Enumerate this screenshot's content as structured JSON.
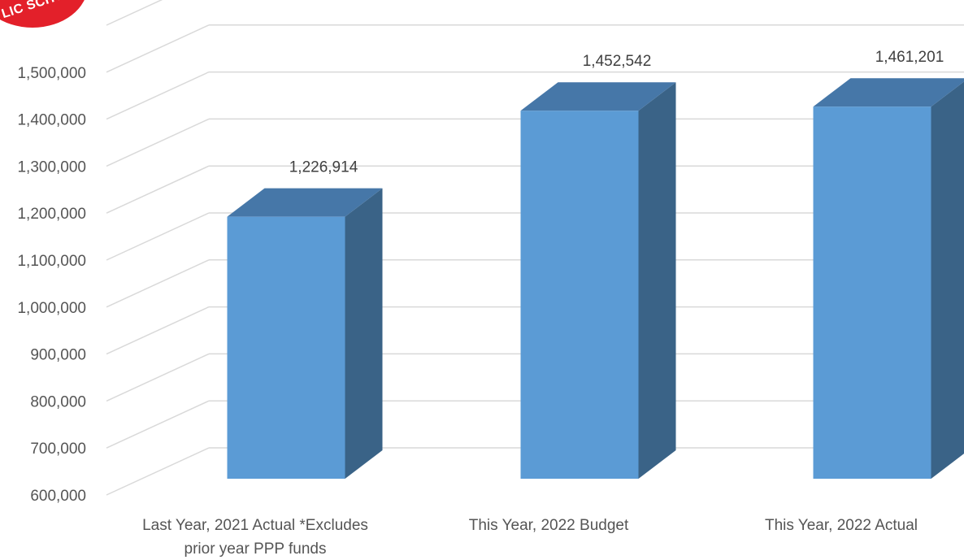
{
  "logo": {
    "text": "LIC SCHO",
    "color": "#e3202a"
  },
  "chart_data": {
    "type": "bar",
    "style": "3d-column",
    "categories": [
      [
        "Last Year, 2021 Actual  *Excludes",
        "prior year PPP funds"
      ],
      [
        "This Year, 2022 Budget"
      ],
      [
        "This Year, 2022 Actual"
      ]
    ],
    "values": [
      1226914,
      1452542,
      1461201
    ],
    "value_labels": [
      "1,226,914",
      "1,452,542",
      "1,461,201"
    ],
    "y_ticks": [
      "600,000",
      "700,000",
      "800,000",
      "900,000",
      "1,000,000",
      "1,100,000",
      "1,200,000",
      "1,300,000",
      "1,400,000",
      "1,500,000"
    ],
    "ylim": [
      600000,
      1600000
    ],
    "grid": true,
    "legend": "none",
    "colors": {
      "front": "#5b9bd5",
      "top": "#4677a8",
      "side": "#3a6387",
      "grid": "#d9d9d9"
    }
  }
}
